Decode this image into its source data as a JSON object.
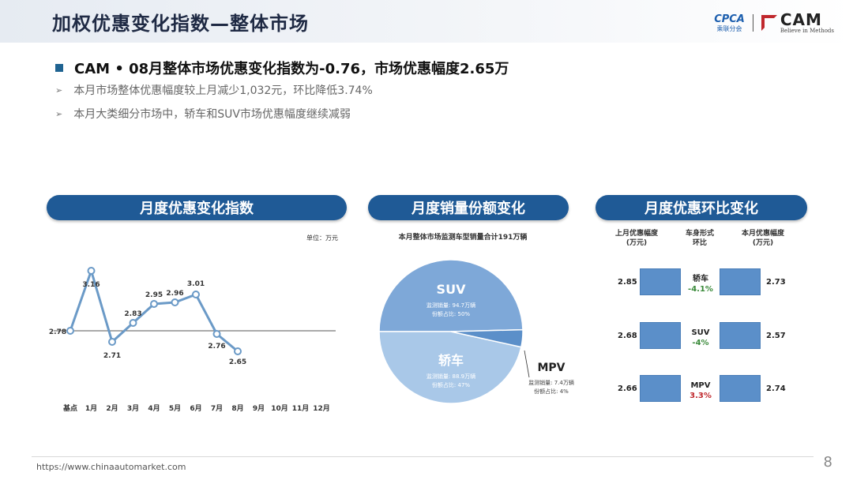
{
  "header": {
    "title": "加权优惠变化指数—整体市场"
  },
  "logos": {
    "cpca_name": "CPCA",
    "cpca_sub": "乘联分会",
    "cam_name": "CAM",
    "cam_tagline": "Believe in Methods"
  },
  "summary": {
    "headline": "CAM • 08月整体市场优惠变化指数为-0.76，市场优惠幅度2.65万",
    "bullets": [
      "本月市场整体优惠幅度较上月减少1,032元，环比降低3.74%",
      "本月大类细分市场中，轿车和SUV市场优惠幅度继续减弱"
    ]
  },
  "sections": {
    "index": "月度优惠变化指数",
    "share": "月度销量份额变化",
    "mom": "月度优惠环比变化"
  },
  "index_chart": {
    "unit_note": "单位：万元"
  },
  "pie_chart": {
    "subtitle": "本月整体市场监测车型销量合计191万辆",
    "suv": {
      "name": "SUV",
      "sales": "监测销量: 94.7万辆",
      "share": "份额占比: 50%"
    },
    "sedan": {
      "name": "轿车",
      "sales": "监测销量: 88.9万辆",
      "share": "份额占比: 47%"
    },
    "mpv": {
      "name": "MPV",
      "sales": "监测销量: 7.4万辆",
      "share": "份额占比: 4%"
    }
  },
  "mom_table": {
    "headers": {
      "last": "上月优惠幅度\n(万元)",
      "type": "车身形式\n环比",
      "this": "本月优惠幅度\n(万元)"
    },
    "rows": [
      {
        "type": "轿车",
        "last": "2.85",
        "this": "2.73",
        "change": "-4.1%",
        "dir": "down"
      },
      {
        "type": "SUV",
        "last": "2.68",
        "this": "2.57",
        "change": "-4%",
        "dir": "down"
      },
      {
        "type": "MPV",
        "last": "2.66",
        "this": "2.74",
        "change": "3.3%",
        "dir": "up"
      }
    ]
  },
  "footer": {
    "url": "https://www.chinaautomarket.com",
    "page": "8"
  },
  "colors": {
    "banner": "#1f5a96",
    "line": "#6b9ac7",
    "suv": "#7ea8d8",
    "sedan": "#a9c8e8",
    "mpv": "#5b8fc9",
    "bar": "#5b8fc9"
  },
  "chart_data": [
    {
      "type": "line",
      "title": "月度优惠变化指数",
      "unit": "万元",
      "categories": [
        "基点",
        "1月",
        "2月",
        "3月",
        "4月",
        "5月",
        "6月",
        "7月",
        "8月",
        "9月",
        "10月",
        "11月",
        "12月"
      ],
      "values": [
        2.78,
        3.16,
        2.71,
        2.83,
        2.95,
        2.96,
        3.01,
        2.76,
        2.65,
        null,
        null,
        null,
        null
      ],
      "ylim": [
        2.5,
        3.2
      ],
      "baseline": 2.78
    },
    {
      "type": "pie",
      "title": "本月整体市场监测车型销量合计191万辆",
      "labels": [
        "SUV",
        "轿车",
        "MPV"
      ],
      "values": [
        94.7,
        88.9,
        7.4
      ],
      "shares_pct": [
        50,
        47,
        4
      ]
    },
    {
      "type": "table",
      "title": "月度优惠环比变化",
      "columns": [
        "上月优惠幅度(万元)",
        "车身形式/环比",
        "本月优惠幅度(万元)"
      ],
      "rows": [
        [
          "2.85",
          "轿车 -4.1%",
          "2.73"
        ],
        [
          "2.68",
          "SUV -4%",
          "2.57"
        ],
        [
          "2.66",
          "MPV 3.3%",
          "2.74"
        ]
      ]
    }
  ]
}
